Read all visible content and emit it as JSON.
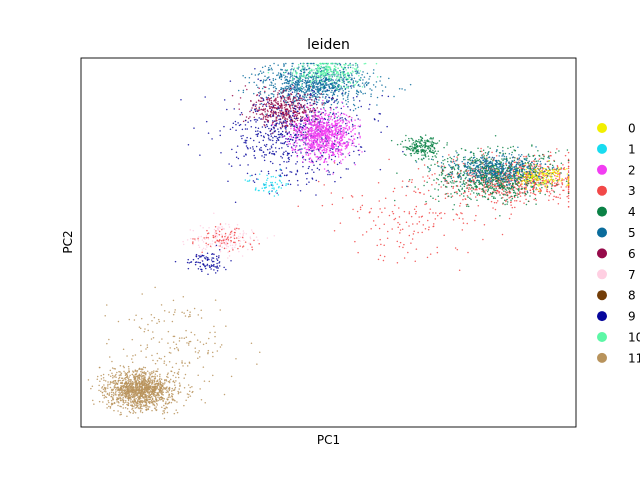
{
  "chart_data": {
    "type": "scatter",
    "title": "leiden",
    "xlabel": "PC1",
    "ylabel": "PC2",
    "xticks": [],
    "yticks": [],
    "grid": false,
    "legend_position": "right",
    "legend": [
      {
        "label": "0",
        "color": "#f2ef00"
      },
      {
        "label": "1",
        "color": "#18dcf0"
      },
      {
        "label": "2",
        "color": "#f23df2"
      },
      {
        "label": "3",
        "color": "#f24848"
      },
      {
        "label": "4",
        "color": "#0b8246"
      },
      {
        "label": "5",
        "color": "#0a6c9c"
      },
      {
        "label": "6",
        "color": "#960a4a"
      },
      {
        "label": "7",
        "color": "#ffcfe2"
      },
      {
        "label": "8",
        "color": "#733d08"
      },
      {
        "label": "9",
        "color": "#06069c"
      },
      {
        "label": "10",
        "color": "#5cf7a6"
      },
      {
        "label": "11",
        "color": "#b8935c"
      }
    ],
    "groups": [
      {
        "label": "5",
        "center": [
          0.47,
          0.93
        ],
        "spread": [
          0.055,
          0.03
        ],
        "count": 900
      },
      {
        "label": "10",
        "center": [
          0.5,
          0.96
        ],
        "spread": [
          0.04,
          0.018
        ],
        "count": 250
      },
      {
        "label": "6",
        "center": [
          0.41,
          0.86
        ],
        "spread": [
          0.035,
          0.025
        ],
        "count": 450
      },
      {
        "label": "9",
        "center": [
          0.43,
          0.79
        ],
        "spread": [
          0.07,
          0.06
        ],
        "count": 650
      },
      {
        "label": "2",
        "center": [
          0.49,
          0.79
        ],
        "spread": [
          0.03,
          0.03
        ],
        "count": 900
      },
      {
        "label": "1",
        "center": [
          0.38,
          0.66
        ],
        "spread": [
          0.02,
          0.015
        ],
        "count": 60
      },
      {
        "label": "3",
        "center": [
          0.87,
          0.67
        ],
        "spread": [
          0.07,
          0.03
        ],
        "count": 750
      },
      {
        "label": "4",
        "center": [
          0.84,
          0.68
        ],
        "spread": [
          0.06,
          0.035
        ],
        "count": 800
      },
      {
        "label": "5",
        "center": [
          0.84,
          0.7
        ],
        "spread": [
          0.05,
          0.02
        ],
        "count": 450
      },
      {
        "label": "0",
        "center": [
          0.93,
          0.68
        ],
        "spread": [
          0.03,
          0.015
        ],
        "count": 150
      },
      {
        "label": "4",
        "center": [
          0.69,
          0.76
        ],
        "spread": [
          0.02,
          0.013
        ],
        "count": 200
      },
      {
        "label": "7",
        "center": [
          0.29,
          0.51
        ],
        "spread": [
          0.03,
          0.02
        ],
        "count": 160
      },
      {
        "label": "3",
        "center": [
          0.29,
          0.51
        ],
        "spread": [
          0.03,
          0.015
        ],
        "count": 80
      },
      {
        "label": "9",
        "center": [
          0.26,
          0.45
        ],
        "spread": [
          0.02,
          0.015
        ],
        "count": 90
      },
      {
        "label": "3",
        "center": [
          0.68,
          0.57
        ],
        "spread": [
          0.08,
          0.07
        ],
        "count": 180
      },
      {
        "label": "11",
        "center": [
          0.12,
          0.1
        ],
        "spread": [
          0.035,
          0.025
        ],
        "count": 1300
      },
      {
        "label": "11",
        "center": [
          0.18,
          0.22
        ],
        "spread": [
          0.06,
          0.07
        ],
        "count": 180
      }
    ]
  }
}
